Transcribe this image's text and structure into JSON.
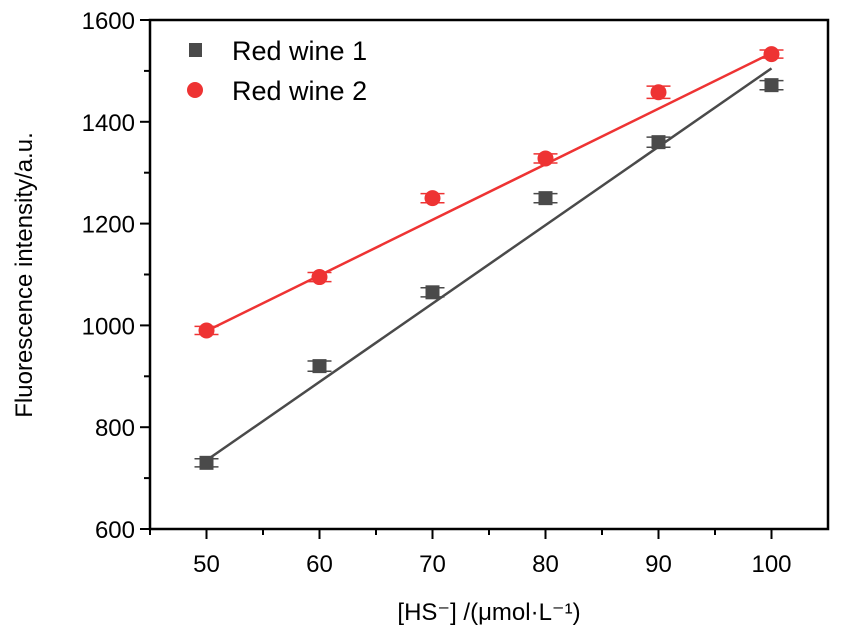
{
  "chart_data": {
    "type": "scatter",
    "title": "",
    "xlabel": "[HS⁻] /(μmol·L⁻¹)",
    "ylabel": "Fluorescence intensity/a.u.",
    "xlim": [
      45,
      105
    ],
    "ylim": [
      600,
      1600
    ],
    "xticks": [
      50,
      60,
      70,
      80,
      90,
      100
    ],
    "yticks": [
      600,
      800,
      1000,
      1200,
      1400,
      1600
    ],
    "grid": false,
    "legend_position": "top-left",
    "series": [
      {
        "name": "Red wine 1",
        "marker": "square",
        "color": "#4a4a4a",
        "x": [
          50,
          60,
          70,
          80,
          90,
          100
        ],
        "y": [
          730,
          920,
          1065,
          1250,
          1360,
          1472
        ],
        "error": [
          8,
          10,
          9,
          9,
          10,
          9
        ],
        "fit": {
          "x": [
            50,
            100
          ],
          "y": [
            735,
            1505
          ]
        }
      },
      {
        "name": "Red wine 2",
        "marker": "circle",
        "color": "#ee3333",
        "x": [
          50,
          60,
          70,
          80,
          90,
          100
        ],
        "y": [
          990,
          1095,
          1250,
          1328,
          1458,
          1533
        ],
        "error": [
          8,
          9,
          9,
          9,
          12,
          8
        ],
        "fit": {
          "x": [
            50,
            100
          ],
          "y": [
            989,
            1535
          ]
        }
      }
    ]
  }
}
